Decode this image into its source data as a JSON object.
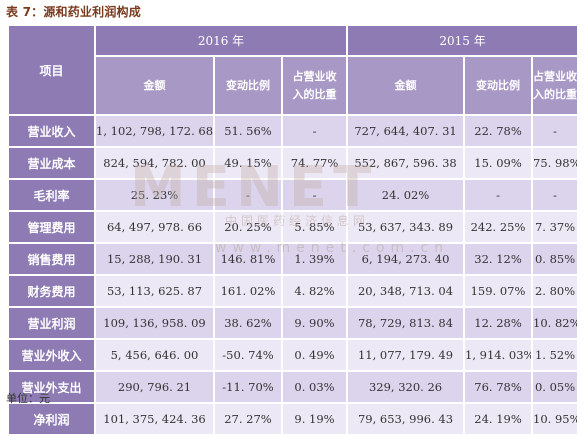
{
  "title": "表 7：源和药业利润构成",
  "header": {
    "item": "项目",
    "year_2016": "2016 年",
    "year_2015": "2015 年",
    "amount": "金额",
    "change_ratio": "变动比例",
    "share_line1": "占营业收",
    "share_line2": "入的比重"
  },
  "rows": [
    {
      "label": "营业收入",
      "a16": "1, 102, 798, 172. 68",
      "c16": "51. 56%",
      "s16": "-",
      "a15": "727, 644, 407. 31",
      "c15": "22. 78%",
      "s15": "-"
    },
    {
      "label": "营业成本",
      "a16": "824, 594, 782. 00",
      "c16": "49. 15%",
      "s16": "74. 77%",
      "a15": "552, 867, 596. 38",
      "c15": "15. 09%",
      "s15": "75. 98%"
    },
    {
      "label": "毛利率",
      "a16": "25. 23%",
      "c16": "-",
      "s16": "-",
      "a15": "24. 02%",
      "c15": "-",
      "s15": "-"
    },
    {
      "label": "管理费用",
      "a16": "64, 497, 978. 66",
      "c16": "20. 25%",
      "s16": "5. 85%",
      "a15": "53, 637, 343. 89",
      "c15": "242. 25%",
      "s15": "7. 37%"
    },
    {
      "label": "销售费用",
      "a16": "15, 288, 190. 31",
      "c16": "146. 81%",
      "s16": "1. 39%",
      "a15": "6, 194, 273. 40",
      "c15": "32. 12%",
      "s15": "0. 85%"
    },
    {
      "label": "财务费用",
      "a16": "53, 113, 625. 87",
      "c16": "161. 02%",
      "s16": "4. 82%",
      "a15": "20, 348, 713. 04",
      "c15": "159. 07%",
      "s15": "2. 80%"
    },
    {
      "label": "营业利润",
      "a16": "109, 136, 958. 09",
      "c16": "38. 62%",
      "s16": "9. 90%",
      "a15": "78, 729, 813. 84",
      "c15": "12. 28%",
      "s15": "10. 82%"
    },
    {
      "label": "营业外收入",
      "a16": "5, 456, 646. 00",
      "c16": "-50. 74%",
      "s16": "0. 49%",
      "a15": "11, 077, 179. 49",
      "c15": "1, 914. 03%",
      "s15": "1. 52%"
    },
    {
      "label": "营业外支出",
      "a16": "290, 796. 21",
      "c16": "-11. 70%",
      "s16": "0. 03%",
      "a15": "329, 320. 26",
      "c15": "76. 78%",
      "s15": "0. 05%"
    },
    {
      "label": "净利润",
      "a16": "101, 375, 424. 36",
      "c16": "27. 27%",
      "s16": "9. 19%",
      "a15": "79, 653, 996. 43",
      "c15": "24. 19%",
      "s15": "10. 95%"
    }
  ],
  "unit": "单位：元",
  "watermark": {
    "brand": "MENET",
    "subtitle": "中国医药经济信息网",
    "url": "www.menet.com.cn"
  }
}
